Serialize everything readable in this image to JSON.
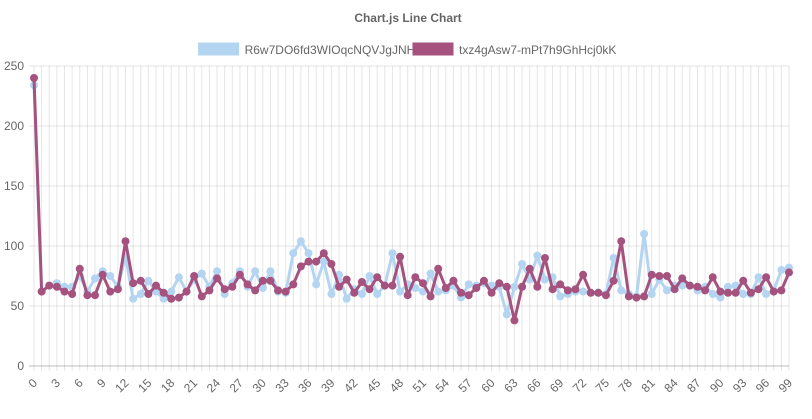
{
  "chart_data": {
    "type": "line",
    "title": "Chart.js Line Chart",
    "xlabel": "",
    "ylabel": "",
    "ylim": [
      0,
      250
    ],
    "y_ticks": [
      0,
      50,
      100,
      150,
      200,
      250
    ],
    "x": [
      0,
      1,
      2,
      3,
      4,
      5,
      6,
      7,
      8,
      9,
      10,
      11,
      12,
      13,
      14,
      15,
      16,
      17,
      18,
      19,
      20,
      21,
      22,
      23,
      24,
      25,
      26,
      27,
      28,
      29,
      30,
      31,
      32,
      33,
      34,
      35,
      36,
      37,
      38,
      39,
      40,
      41,
      42,
      43,
      44,
      45,
      46,
      47,
      48,
      49,
      50,
      51,
      52,
      53,
      54,
      55,
      56,
      57,
      58,
      59,
      60,
      61,
      62,
      63,
      64,
      65,
      66,
      67,
      68,
      69,
      70,
      71,
      72,
      73,
      74,
      75,
      76,
      77,
      78,
      79,
      80,
      81,
      82,
      83,
      84,
      85,
      86,
      87,
      88,
      89,
      90,
      91,
      92,
      93,
      94,
      95,
      96,
      97,
      98,
      99
    ],
    "x_tick_labels": [
      "0",
      "3",
      "6",
      "9",
      "12",
      "15",
      "18",
      "21",
      "24",
      "27",
      "30",
      "33",
      "36",
      "39",
      "42",
      "45",
      "48",
      "51",
      "54",
      "57",
      "60",
      "63",
      "66",
      "69",
      "72",
      "75",
      "78",
      "81",
      "84",
      "87",
      "90",
      "93",
      "96",
      "99"
    ],
    "grid": true,
    "legend_position": "top",
    "series": [
      {
        "name": "R6w7DO6fd3WIOqcNQVJgJNHm",
        "color": "#b3d5f2",
        "values": [
          234,
          62,
          67,
          69,
          66,
          66,
          75,
          62,
          73,
          79,
          75,
          66,
          91,
          56,
          60,
          71,
          62,
          56,
          62,
          74,
          62,
          72,
          77,
          66,
          79,
          60,
          69,
          79,
          66,
          79,
          65,
          79,
          62,
          61,
          94,
          104,
          94,
          68,
          87,
          60,
          76,
          56,
          64,
          60,
          75,
          60,
          67,
          94,
          62,
          68,
          65,
          62,
          77,
          62,
          63,
          67,
          57,
          68,
          67,
          69,
          67,
          66,
          43,
          66,
          85,
          72,
          92,
          72,
          74,
          58,
          60,
          62,
          62,
          61,
          61,
          60,
          90,
          63,
          60,
          58,
          110,
          60,
          72,
          63,
          67,
          67,
          67,
          63,
          66,
          60,
          57,
          66,
          67,
          60,
          60,
          74,
          60,
          63,
          80,
          82
        ],
        "marker_size": 4
      },
      {
        "name": "txz4gAsw7-mPt7h9GhHcj0kK",
        "color": "#a5527f",
        "values": [
          240,
          62,
          67,
          66,
          62,
          60,
          81,
          59,
          59,
          76,
          62,
          64,
          104,
          69,
          71,
          60,
          67,
          61,
          56,
          57,
          62,
          75,
          58,
          63,
          73,
          64,
          66,
          76,
          68,
          63,
          71,
          71,
          63,
          62,
          68,
          83,
          87,
          87,
          94,
          85,
          66,
          72,
          61,
          70,
          64,
          74,
          67,
          67,
          91,
          59,
          74,
          69,
          58,
          81,
          65,
          71,
          61,
          59,
          65,
          71,
          61,
          69,
          66,
          38,
          66,
          81,
          66,
          90,
          64,
          68,
          63,
          64,
          76,
          61,
          61,
          59,
          71,
          104,
          58,
          57,
          58,
          76,
          75,
          75,
          64,
          73,
          67,
          66,
          63,
          74,
          62,
          61,
          61,
          71,
          61,
          64,
          74,
          62,
          63,
          78
        ],
        "marker_size": 4
      }
    ]
  }
}
